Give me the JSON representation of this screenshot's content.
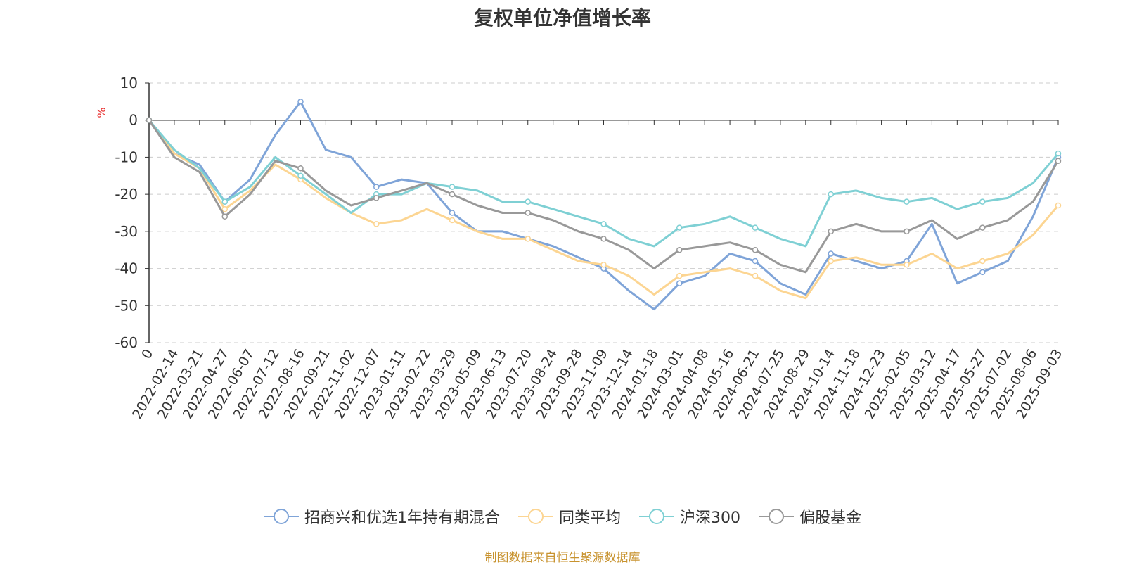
{
  "chart_data": {
    "type": "line",
    "title": "复权单位净值增长率",
    "ylabel": "%",
    "ylim": [
      -60,
      10
    ],
    "yticks": [
      10,
      0,
      -10,
      -20,
      -30,
      -40,
      -50,
      -60
    ],
    "grid": true,
    "legend_position": "bottom",
    "source": "制图数据来自恒生聚源数据库",
    "x_labels": [
      "0",
      "2022-02-14",
      "2022-03-21",
      "2022-04-27",
      "2022-06-07",
      "2022-07-12",
      "2022-08-16",
      "2022-09-21",
      "2022-11-02",
      "2022-12-07",
      "2023-01-11",
      "2023-02-22",
      "2023-03-29",
      "2023-05-09",
      "2023-06-13",
      "2023-07-20",
      "2023-08-24",
      "2023-09-28",
      "2023-11-09",
      "2023-12-14",
      "2024-01-18",
      "2024-03-01",
      "2024-04-08",
      "2024-05-16",
      "2024-06-21",
      "2024-07-25",
      "2024-08-29",
      "2024-10-14",
      "2024-11-18",
      "2024-12-23",
      "2025-02-05",
      "2025-03-12",
      "2025-04-17",
      "2025-05-27",
      "2025-07-02",
      "2025-08-06",
      "2025-09-03"
    ],
    "series": [
      {
        "name": "招商兴和优选1年持有期混合",
        "color": "#7fa4d8",
        "values": [
          0,
          -9,
          -12,
          -22,
          -16,
          -4,
          5,
          -8,
          -10,
          -18,
          -16,
          -17,
          -25,
          -30,
          -30,
          -32,
          -34,
          -37,
          -40,
          -46,
          -51,
          -44,
          -42,
          -36,
          -38,
          -44,
          -47,
          -36,
          -38,
          -40,
          -38,
          -28,
          -44,
          -41,
          -38,
          -26,
          -10
        ]
      },
      {
        "name": "同类平均",
        "color": "#fcd592",
        "values": [
          0,
          -9,
          -13,
          -24,
          -19,
          -12,
          -16,
          -21,
          -25,
          -28,
          -27,
          -24,
          -27,
          -30,
          -32,
          -32,
          -35,
          -38,
          -39,
          -42,
          -47,
          -42,
          -41,
          -40,
          -42,
          -46,
          -48,
          -38,
          -37,
          -39,
          -39,
          -36,
          -40,
          -38,
          -36,
          -31,
          -23
        ]
      },
      {
        "name": "沪深300",
        "color": "#7fd0d4",
        "values": [
          0,
          -8,
          -13,
          -22,
          -18,
          -10,
          -15,
          -20,
          -25,
          -20,
          -20,
          -17,
          -18,
          -19,
          -22,
          -22,
          -24,
          -26,
          -28,
          -32,
          -34,
          -29,
          -28,
          -26,
          -29,
          -32,
          -34,
          -20,
          -19,
          -21,
          -22,
          -21,
          -24,
          -22,
          -21,
          -17,
          -9
        ]
      },
      {
        "name": "偏股基金",
        "color": "#999999",
        "values": [
          0,
          -10,
          -14,
          -26,
          -20,
          -11,
          -13,
          -19,
          -23,
          -21,
          -19,
          -17,
          -20,
          -23,
          -25,
          -25,
          -27,
          -30,
          -32,
          -35,
          -40,
          -35,
          -34,
          -33,
          -35,
          -39,
          -41,
          -30,
          -28,
          -30,
          -30,
          -27,
          -32,
          -29,
          -27,
          -22,
          -11
        ]
      }
    ]
  }
}
